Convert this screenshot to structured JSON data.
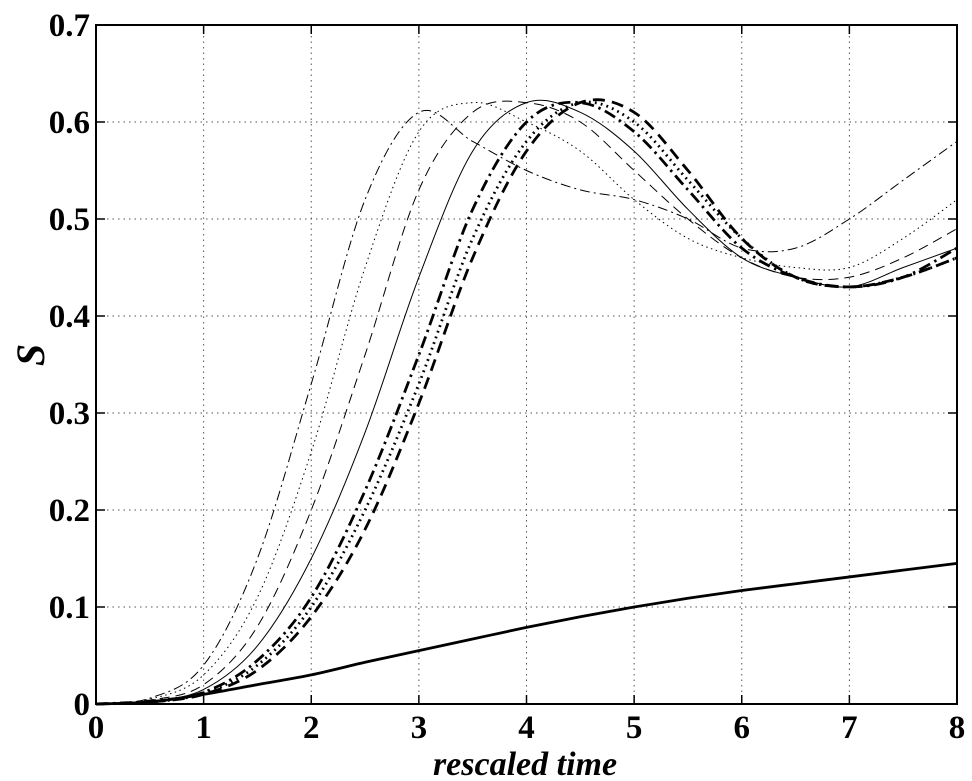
{
  "chart_data": {
    "type": "line",
    "title": "",
    "xlabel": "rescaled time",
    "ylabel": "S",
    "xlim": [
      0,
      8
    ],
    "ylim": [
      0,
      0.7
    ],
    "xticks": [
      "0",
      "1",
      "2",
      "3",
      "4",
      "5",
      "6",
      "7",
      "8"
    ],
    "yticks": [
      "0",
      "0.1",
      "0.2",
      "0.3",
      "0.4",
      "0.5",
      "0.6",
      "0.7"
    ],
    "grid": true,
    "legend": "none",
    "x": [
      0,
      0.5,
      1,
      1.5,
      2,
      2.5,
      3,
      3.5,
      4,
      4.5,
      5,
      5.5,
      6,
      6.5,
      7,
      7.5,
      8
    ],
    "series": [
      {
        "style": "dashdot-thin",
        "color": "#000000",
        "values": [
          0,
          0.006,
          0.04,
          0.15,
          0.33,
          0.52,
          0.61,
          0.58,
          0.55,
          0.53,
          0.52,
          0.5,
          0.47,
          0.47,
          0.5,
          0.54,
          0.58
        ]
      },
      {
        "style": "dotted-thin",
        "color": "#000000",
        "values": [
          0,
          0.005,
          0.03,
          0.11,
          0.26,
          0.45,
          0.59,
          0.62,
          0.6,
          0.57,
          0.52,
          0.48,
          0.46,
          0.45,
          0.45,
          0.48,
          0.52
        ]
      },
      {
        "style": "dashed-thin",
        "color": "#000000",
        "values": [
          0,
          0.004,
          0.02,
          0.08,
          0.2,
          0.36,
          0.53,
          0.61,
          0.62,
          0.6,
          0.55,
          0.5,
          0.46,
          0.44,
          0.44,
          0.46,
          0.49
        ]
      },
      {
        "style": "solid-thin",
        "color": "#000000",
        "values": [
          0,
          0.003,
          0.015,
          0.06,
          0.15,
          0.28,
          0.44,
          0.57,
          0.62,
          0.61,
          0.57,
          0.51,
          0.46,
          0.44,
          0.43,
          0.45,
          0.47
        ]
      },
      {
        "style": "dashdot-thick",
        "color": "#000000",
        "values": [
          0,
          0.003,
          0.012,
          0.045,
          0.11,
          0.22,
          0.36,
          0.51,
          0.6,
          0.62,
          0.59,
          0.53,
          0.47,
          0.44,
          0.43,
          0.44,
          0.47
        ]
      },
      {
        "style": "dotted-thick",
        "color": "#000000",
        "values": [
          0,
          0.002,
          0.011,
          0.04,
          0.1,
          0.2,
          0.33,
          0.48,
          0.58,
          0.62,
          0.6,
          0.54,
          0.48,
          0.44,
          0.43,
          0.44,
          0.46
        ]
      },
      {
        "style": "dashed-thick",
        "color": "#000000",
        "values": [
          0,
          0.002,
          0.01,
          0.035,
          0.09,
          0.18,
          0.31,
          0.46,
          0.57,
          0.62,
          0.61,
          0.55,
          0.48,
          0.44,
          0.43,
          0.44,
          0.46
        ]
      },
      {
        "style": "solid-thick",
        "color": "#000000",
        "values": [
          0,
          0.002,
          0.01,
          0.02,
          0.03,
          0.043,
          0.055,
          0.067,
          0.079,
          0.09,
          0.1,
          0.109,
          0.117,
          0.124,
          0.131,
          0.138,
          0.145
        ]
      }
    ]
  }
}
